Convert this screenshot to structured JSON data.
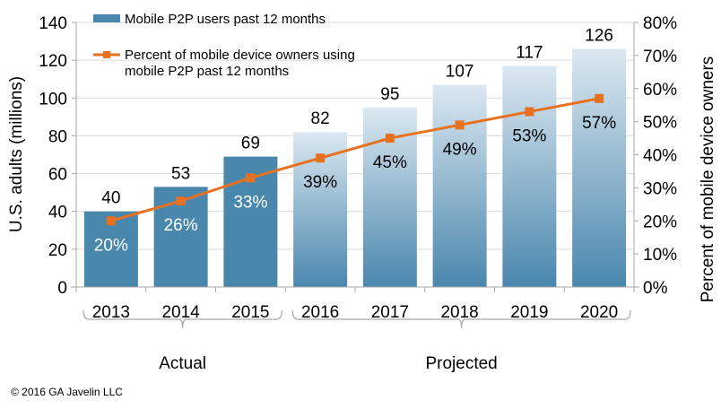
{
  "chart_data": {
    "type": "bar",
    "categories": [
      "2013",
      "2014",
      "2015",
      "2016",
      "2017",
      "2018",
      "2019",
      "2020"
    ],
    "series": [
      {
        "name": "Mobile P2P users past 12 months",
        "type": "bar",
        "axis": "left",
        "values": [
          40,
          53,
          69,
          82,
          95,
          107,
          117,
          126
        ],
        "labels": [
          "40",
          "53",
          "69",
          "82",
          "95",
          "107",
          "117",
          "126"
        ]
      },
      {
        "name": "Percent of mobile device owners using mobile P2P past 12 months",
        "type": "line",
        "axis": "right",
        "values": [
          20,
          26,
          33,
          39,
          45,
          49,
          53,
          57
        ],
        "labels": [
          "20%",
          "26%",
          "33%",
          "39%",
          "45%",
          "49%",
          "53%",
          "57%"
        ]
      }
    ],
    "projected_from": "2016",
    "ylabel": "U.S. adults (millions)",
    "y2label": "Percent of mobile device owners",
    "ylim": [
      0,
      140
    ],
    "y2lim": [
      0,
      80
    ],
    "yticks": [
      "0",
      "20",
      "40",
      "60",
      "80",
      "100",
      "120",
      "140"
    ],
    "y2ticks": [
      "0%",
      "10%",
      "20%",
      "30%",
      "40%",
      "50%",
      "60%",
      "70%",
      "80%"
    ],
    "groups": [
      {
        "label": "Actual",
        "from": "2013",
        "to": "2015"
      },
      {
        "label": "Projected",
        "from": "2016",
        "to": "2020"
      }
    ],
    "grid": true,
    "legend": "top-left",
    "colors": {
      "bar": "#4a87ad",
      "bar_projected_top": "#dbe8f1",
      "line": "#e8711f"
    }
  },
  "footer": {
    "copyright": "© 2016 GA Javelin  LLC"
  }
}
